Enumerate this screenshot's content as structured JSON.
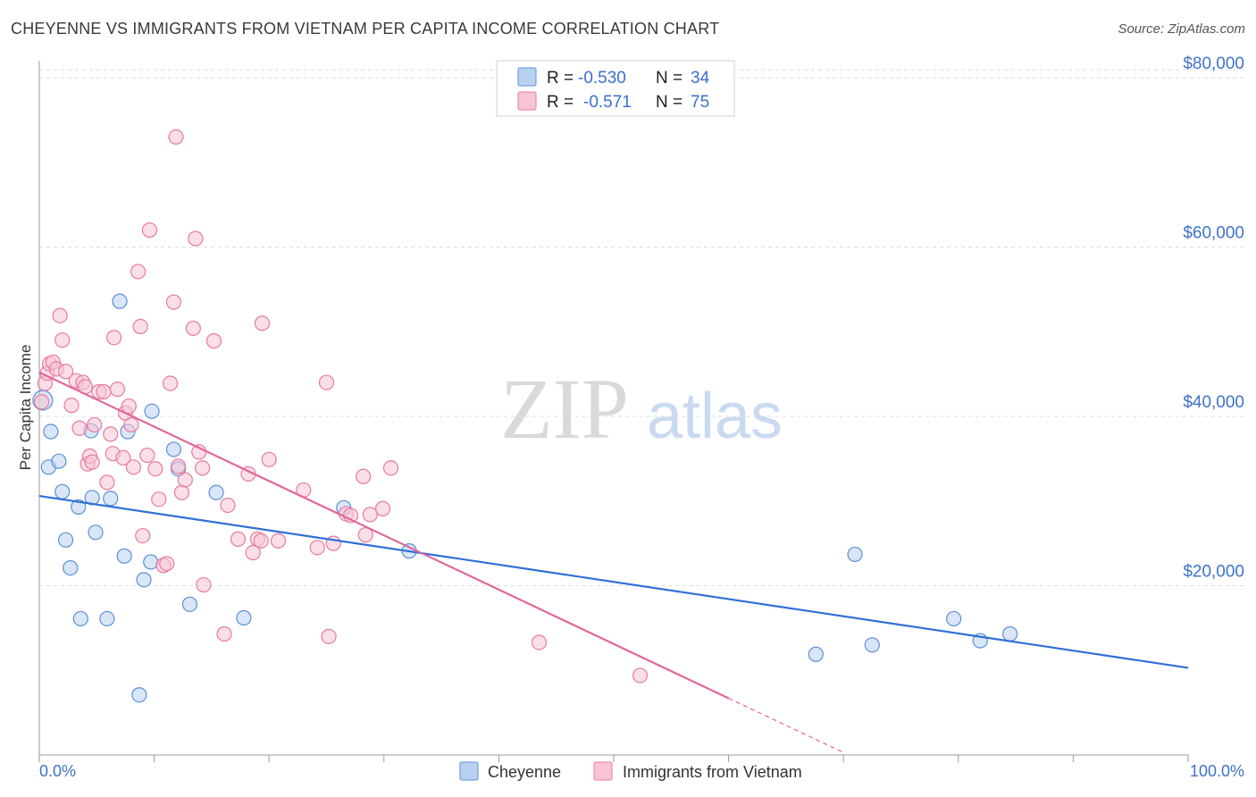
{
  "title": "CHEYENNE VS IMMIGRANTS FROM VIETNAM PER CAPITA INCOME CORRELATION CHART",
  "source": "Source: ZipAtlas.com",
  "watermark": {
    "zip": "ZIP",
    "atlas": "atlas"
  },
  "chart_data": {
    "type": "scatter",
    "title": "CHEYENNE VS IMMIGRANTS FROM VIETNAM PER CAPITA INCOME CORRELATION CHART",
    "xlabel": "",
    "ylabel": "Per Capita Income",
    "xlim": [
      0,
      100
    ],
    "ylim": [
      0,
      82000
    ],
    "x_tick_labels": [
      "0.0%",
      "100.0%"
    ],
    "y_ticks": [
      20000,
      40000,
      60000,
      80000
    ],
    "y_tick_labels": [
      "$20,000",
      "$40,000",
      "$60,000",
      "$80,000"
    ],
    "grid": true,
    "legend_position": "top-center",
    "stats": [
      {
        "series": "Cheyenne",
        "r_label": "R =",
        "r": "-0.530",
        "n_label": "N =",
        "n": "34"
      },
      {
        "series": "Immigrants from Vietnam",
        "r_label": "R =",
        "r": "-0.571",
        "n_label": "N =",
        "n": "75"
      }
    ],
    "series": [
      {
        "name": "Cheyenne",
        "color": "#5b8fd8",
        "fill": "#b9d1f1",
        "trend": {
          "x0": 0,
          "y0": 30600,
          "x1": 100,
          "y1": 10300
        },
        "points": [
          [
            0.3,
            41900
          ],
          [
            1.0,
            38200
          ],
          [
            0.8,
            34000
          ],
          [
            1.7,
            34700
          ],
          [
            2.0,
            31100
          ],
          [
            3.4,
            29300
          ],
          [
            2.3,
            25400
          ],
          [
            2.7,
            22100
          ],
          [
            3.6,
            16100
          ],
          [
            4.5,
            38300
          ],
          [
            4.6,
            30400
          ],
          [
            4.9,
            26300
          ],
          [
            5.9,
            16100
          ],
          [
            6.2,
            30300
          ],
          [
            7.0,
            53600
          ],
          [
            7.4,
            23500
          ],
          [
            7.7,
            38200
          ],
          [
            8.7,
            7100
          ],
          [
            9.1,
            20700
          ],
          [
            9.7,
            22800
          ],
          [
            9.8,
            40600
          ],
          [
            11.7,
            36100
          ],
          [
            12.1,
            33800
          ],
          [
            13.1,
            17800
          ],
          [
            15.4,
            31000
          ],
          [
            17.8,
            16200
          ],
          [
            26.5,
            29200
          ],
          [
            32.2,
            24100
          ],
          [
            67.6,
            11900
          ],
          [
            71.0,
            23700
          ],
          [
            72.5,
            13000
          ],
          [
            79.6,
            16100
          ],
          [
            81.9,
            13500
          ],
          [
            84.5,
            14300
          ]
        ]
      },
      {
        "name": "Immigrants from Vietnam",
        "color": "#e87a9e",
        "fill": "#f7c4d5",
        "trend": {
          "x0": 0,
          "y0": 45200,
          "x1": 60,
          "y1": 6700,
          "dash_x1": 70,
          "dash_y1": 300
        },
        "points": [
          [
            0.2,
            41700
          ],
          [
            0.5,
            43900
          ],
          [
            0.7,
            45100
          ],
          [
            0.9,
            46200
          ],
          [
            1.2,
            46400
          ],
          [
            1.5,
            45600
          ],
          [
            1.8,
            51900
          ],
          [
            2.0,
            49000
          ],
          [
            2.3,
            45300
          ],
          [
            2.8,
            41300
          ],
          [
            3.2,
            44200
          ],
          [
            3.5,
            38600
          ],
          [
            3.8,
            44000
          ],
          [
            4.0,
            43500
          ],
          [
            4.2,
            34400
          ],
          [
            4.4,
            35300
          ],
          [
            4.6,
            34600
          ],
          [
            4.8,
            39000
          ],
          [
            5.2,
            42900
          ],
          [
            5.6,
            42900
          ],
          [
            5.9,
            32200
          ],
          [
            6.2,
            37900
          ],
          [
            6.4,
            35600
          ],
          [
            6.8,
            43200
          ],
          [
            6.5,
            49300
          ],
          [
            7.3,
            35100
          ],
          [
            7.5,
            40400
          ],
          [
            7.8,
            41200
          ],
          [
            8.0,
            39000
          ],
          [
            8.2,
            34000
          ],
          [
            8.6,
            57100
          ],
          [
            8.8,
            50600
          ],
          [
            9.0,
            25900
          ],
          [
            9.4,
            35400
          ],
          [
            9.6,
            62000
          ],
          [
            10.1,
            33800
          ],
          [
            10.4,
            30200
          ],
          [
            10.8,
            22400
          ],
          [
            11.1,
            22600
          ],
          [
            11.4,
            43900
          ],
          [
            11.7,
            53500
          ],
          [
            11.9,
            73000
          ],
          [
            12.1,
            34100
          ],
          [
            12.4,
            31000
          ],
          [
            12.7,
            32500
          ],
          [
            13.4,
            50400
          ],
          [
            13.6,
            61000
          ],
          [
            13.9,
            35800
          ],
          [
            14.2,
            33900
          ],
          [
            14.3,
            20100
          ],
          [
            15.2,
            48900
          ],
          [
            16.1,
            14300
          ],
          [
            16.4,
            29500
          ],
          [
            17.3,
            25500
          ],
          [
            18.2,
            33200
          ],
          [
            18.6,
            23900
          ],
          [
            19.0,
            25500
          ],
          [
            19.3,
            25300
          ],
          [
            19.4,
            51000
          ],
          [
            20.0,
            34900
          ],
          [
            20.8,
            25300
          ],
          [
            23.0,
            31300
          ],
          [
            24.2,
            24500
          ],
          [
            25.0,
            44000
          ],
          [
            25.2,
            14000
          ],
          [
            25.6,
            25000
          ],
          [
            26.7,
            28500
          ],
          [
            27.1,
            28300
          ],
          [
            28.2,
            32900
          ],
          [
            28.4,
            26000
          ],
          [
            28.8,
            28400
          ],
          [
            29.9,
            29100
          ],
          [
            30.6,
            33900
          ],
          [
            43.5,
            13300
          ],
          [
            52.3,
            9400
          ]
        ]
      }
    ]
  },
  "legend": {
    "items": [
      {
        "label": "Cheyenne"
      },
      {
        "label": "Immigrants from Vietnam"
      }
    ]
  }
}
